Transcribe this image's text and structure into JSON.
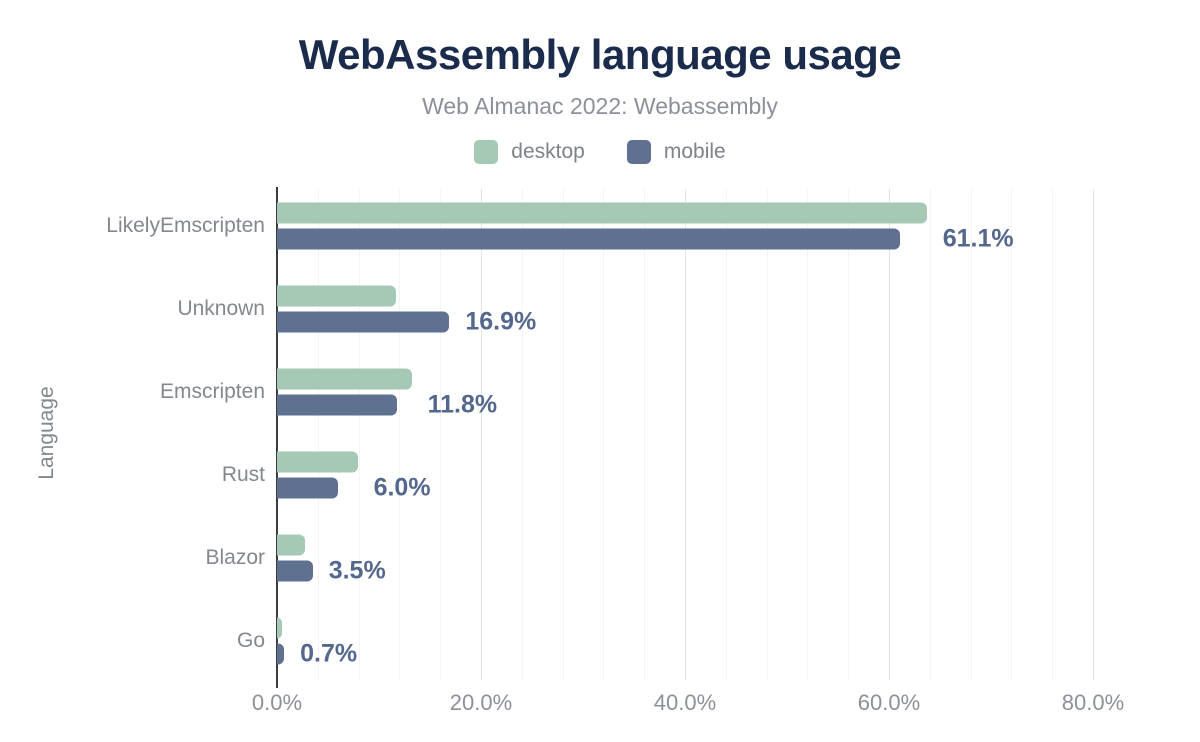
{
  "header": {
    "title": "WebAssembly language usage",
    "subtitle": "Web Almanac 2022: Webassembly"
  },
  "colors": {
    "title": "#1a2b4c",
    "desktop_bar": "#a6c9b6",
    "mobile_bar": "#5f7090",
    "value_label": "#54678c",
    "axis_line": "#3b3c3e",
    "text_muted": "#83888f"
  },
  "chart_data": {
    "type": "bar",
    "orientation": "horizontal",
    "title": "WebAssembly language usage",
    "subtitle": "Web Almanac 2022: Webassembly",
    "ylabel": "Language",
    "xlabel": "",
    "categories": [
      "LikelyEmscripten",
      "Unknown",
      "Emscripten",
      "Rust",
      "Blazor",
      "Go"
    ],
    "series": [
      {
        "name": "desktop",
        "color": "#a6c9b6",
        "values": [
          63.7,
          11.7,
          13.2,
          7.9,
          2.7,
          0.5
        ]
      },
      {
        "name": "mobile",
        "color": "#5f7090",
        "values": [
          61.1,
          16.9,
          11.8,
          6.0,
          3.5,
          0.7
        ]
      }
    ],
    "data_labels": {
      "labeled_series": "mobile",
      "values": [
        "61.1%",
        "16.9%",
        "11.8%",
        "6.0%",
        "3.5%",
        "0.7%"
      ]
    },
    "x_axis": {
      "min": 0,
      "max": 80,
      "ticks": [
        {
          "value": 0,
          "label": "0.0%"
        },
        {
          "value": 20,
          "label": "20.0%"
        },
        {
          "value": 40,
          "label": "40.0%"
        },
        {
          "value": 60,
          "label": "60.0%"
        },
        {
          "value": 80,
          "label": "80.0%"
        }
      ],
      "minor_grid_step": 4,
      "major_grid_step": 20
    },
    "grid": true,
    "legend_position": "top"
  }
}
